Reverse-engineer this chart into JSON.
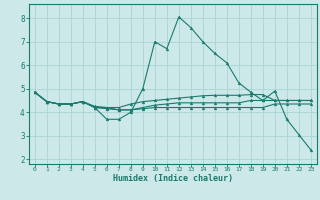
{
  "xlabel": "Humidex (Indice chaleur)",
  "xlim": [
    -0.5,
    23.5
  ],
  "ylim": [
    1.8,
    8.6
  ],
  "xticks": [
    0,
    1,
    2,
    3,
    4,
    5,
    6,
    7,
    8,
    9,
    10,
    11,
    12,
    13,
    14,
    15,
    16,
    17,
    18,
    19,
    20,
    21,
    22,
    23
  ],
  "yticks": [
    2,
    3,
    4,
    5,
    6,
    7,
    8
  ],
  "bg_color": "#cce8e8",
  "line_color": "#1a7a6e",
  "grid_color": "#aad4d4",
  "lines": [
    {
      "x": [
        0,
        1,
        2,
        3,
        4,
        5,
        6,
        7,
        8,
        9,
        10,
        11,
        12,
        13,
        14,
        15,
        16,
        17,
        18,
        19,
        20,
        21,
        22,
        23
      ],
      "y": [
        4.85,
        4.45,
        4.35,
        4.35,
        4.45,
        4.2,
        3.7,
        3.7,
        4.0,
        5.0,
        7.0,
        6.7,
        8.05,
        7.6,
        7.0,
        6.5,
        6.1,
        5.25,
        4.85,
        4.5,
        4.9,
        3.7,
        3.05,
        2.4
      ]
    },
    {
      "x": [
        0,
        1,
        2,
        3,
        4,
        5,
        6,
        7,
        8,
        9,
        10,
        11,
        12,
        13,
        14,
        15,
        16,
        17,
        18,
        19,
        20,
        21,
        22,
        23
      ],
      "y": [
        4.85,
        4.45,
        4.35,
        4.35,
        4.45,
        4.25,
        4.2,
        4.2,
        4.35,
        4.45,
        4.5,
        4.55,
        4.6,
        4.65,
        4.7,
        4.72,
        4.72,
        4.72,
        4.75,
        4.75,
        4.5,
        4.5,
        4.5,
        4.5
      ]
    },
    {
      "x": [
        0,
        1,
        2,
        3,
        4,
        5,
        6,
        7,
        8,
        9,
        10,
        11,
        12,
        13,
        14,
        15,
        16,
        17,
        18,
        19,
        20,
        21,
        22,
        23
      ],
      "y": [
        4.85,
        4.45,
        4.35,
        4.35,
        4.45,
        4.2,
        4.15,
        4.1,
        4.1,
        4.15,
        4.2,
        4.2,
        4.2,
        4.2,
        4.2,
        4.2,
        4.2,
        4.2,
        4.2,
        4.2,
        4.35,
        4.35,
        4.35,
        4.35
      ]
    },
    {
      "x": [
        0,
        1,
        2,
        3,
        4,
        5,
        6,
        7,
        8,
        9,
        10,
        11,
        12,
        13,
        14,
        15,
        16,
        17,
        18,
        19,
        20,
        21,
        22,
        23
      ],
      "y": [
        4.85,
        4.45,
        4.35,
        4.35,
        4.45,
        4.2,
        4.2,
        4.1,
        4.1,
        4.2,
        4.3,
        4.35,
        4.4,
        4.4,
        4.4,
        4.4,
        4.4,
        4.4,
        4.5,
        4.5,
        4.5,
        4.5,
        4.5,
        4.5
      ]
    }
  ]
}
